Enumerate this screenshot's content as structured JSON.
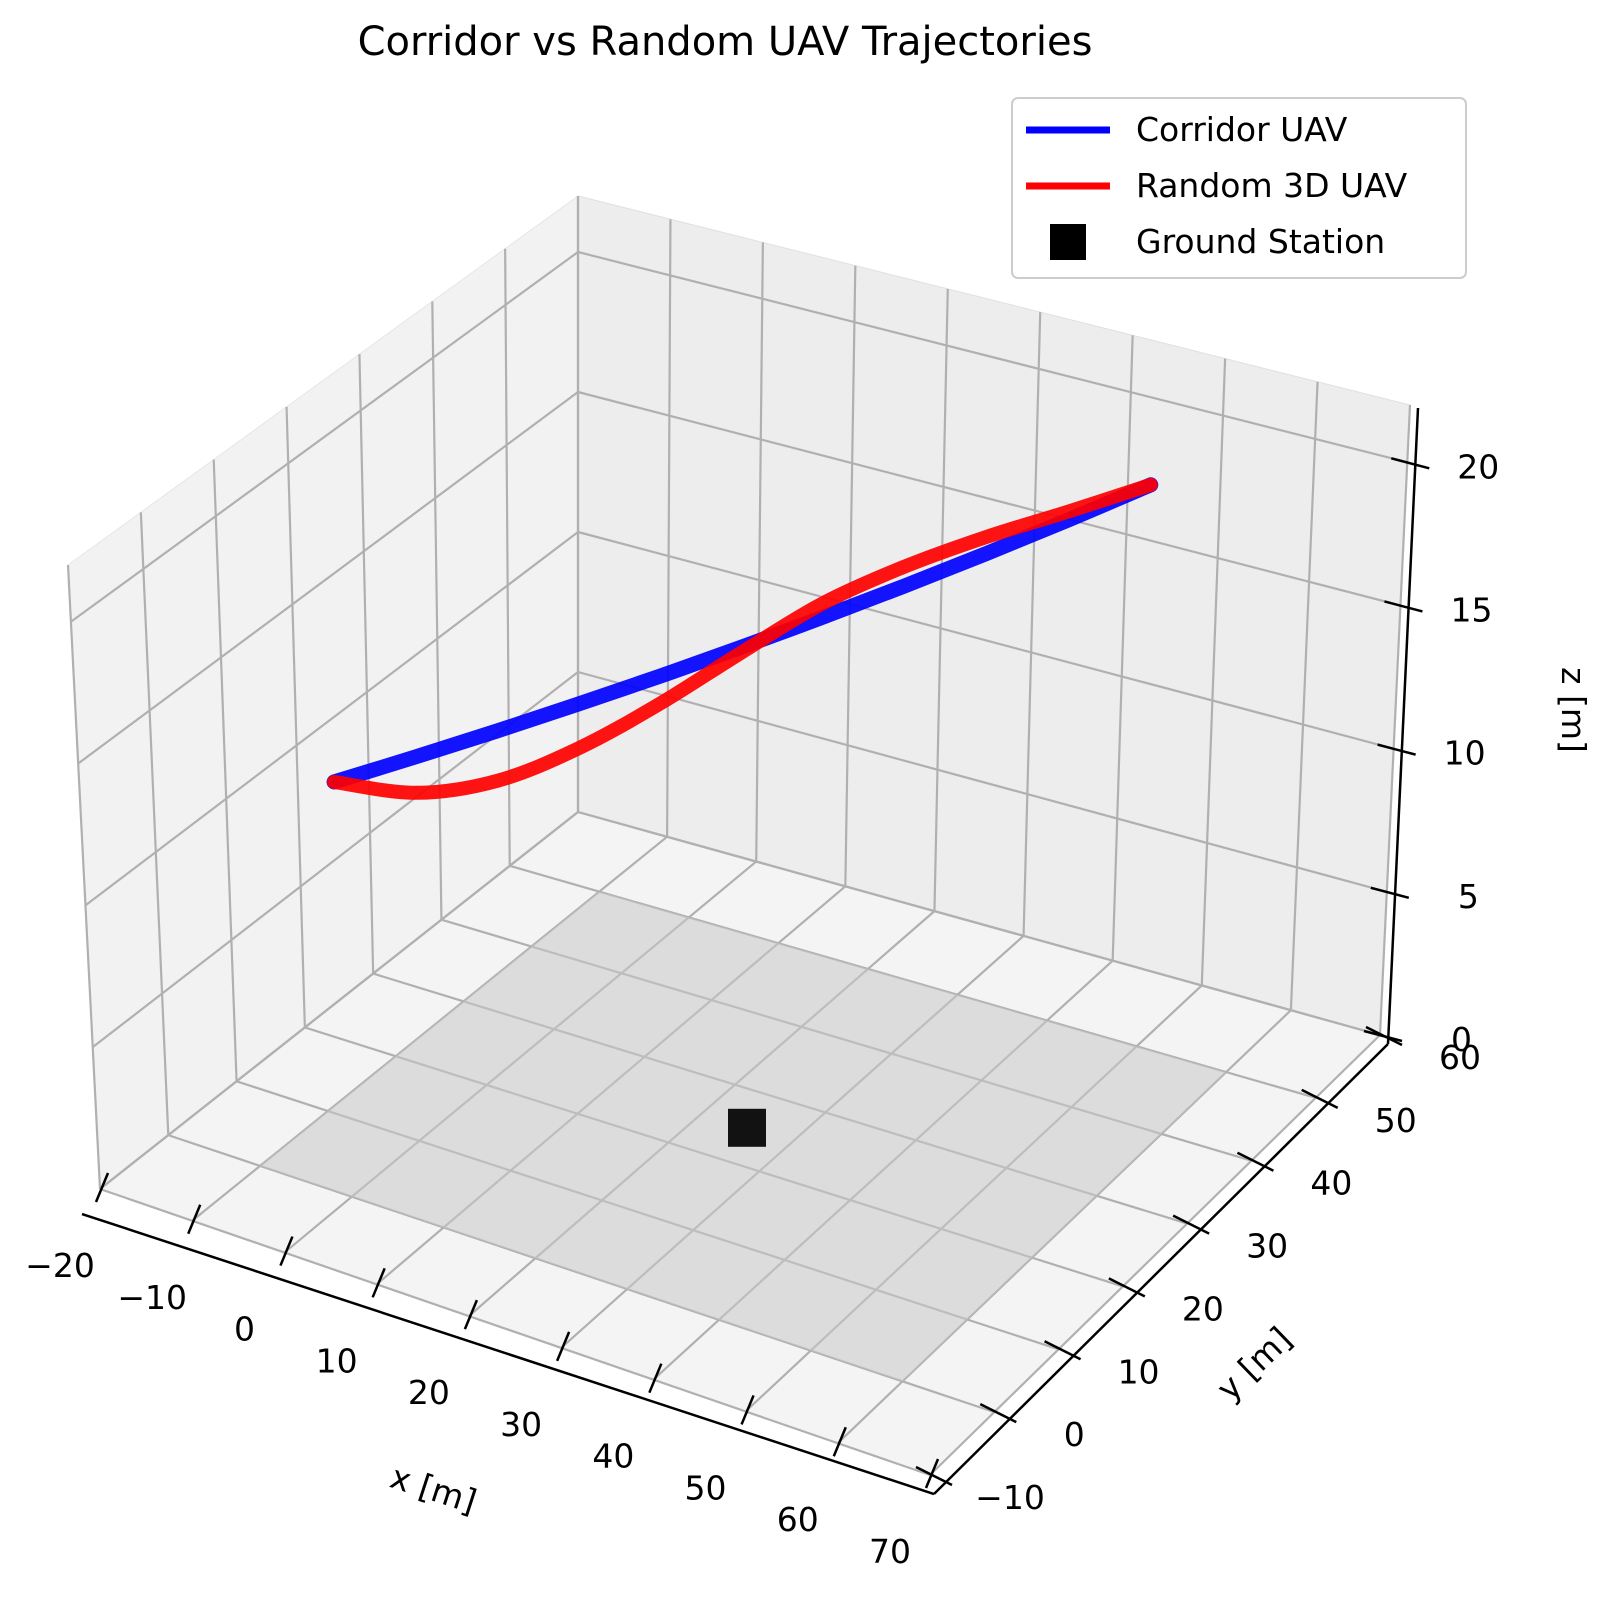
{
  "chart_data": {
    "type": "line",
    "projection": "3d",
    "title": "Corridor vs Random UAV Trajectories",
    "xlabel": "x [m]",
    "ylabel": "y [m]",
    "zlabel": "z [m]",
    "xticks": [
      "−20",
      "−10",
      "0",
      "10",
      "20",
      "30",
      "40",
      "50",
      "60",
      "70"
    ],
    "yticks": [
      "−10",
      "0",
      "10",
      "20",
      "30",
      "40",
      "50",
      "60"
    ],
    "zticks": [
      "0",
      "5",
      "10",
      "15",
      "20"
    ],
    "xlim": [
      -20,
      70
    ],
    "ylim": [
      -10,
      60
    ],
    "zlim": [
      0,
      22
    ],
    "grid": true,
    "legend_position": "top-right",
    "ground_plane": {
      "x": [
        -10,
        60
      ],
      "y": [
        0,
        50
      ],
      "z": 0
    },
    "series": [
      {
        "name": "Corridor UAV",
        "color": "#0000ff",
        "x": [
          0,
          5,
          10,
          15,
          20,
          25,
          30,
          35,
          40,
          45,
          50
        ],
        "y": [
          0,
          5,
          10,
          15,
          20,
          25,
          30,
          35,
          40,
          45,
          50
        ],
        "z": [
          15,
          15.5,
          16,
          16.5,
          17,
          17.5,
          18,
          18.5,
          19,
          19.5,
          20
        ]
      },
      {
        "name": "Random 3D UAV",
        "color": "#ff0000",
        "x": [
          0,
          5,
          10,
          15,
          20,
          25,
          30,
          35,
          40,
          45,
          50
        ],
        "y": [
          0,
          5,
          10,
          15,
          20,
          25,
          30,
          35,
          40,
          45,
          50
        ],
        "z": [
          15,
          14.2,
          14.2,
          14.9,
          16.0,
          17.3,
          18.5,
          19.2,
          19.6,
          19.8,
          20
        ]
      }
    ],
    "markers": [
      {
        "name": "Ground Station",
        "color": "#000000",
        "shape": "square",
        "x": 25,
        "y": 25,
        "z": 0
      }
    ]
  }
}
